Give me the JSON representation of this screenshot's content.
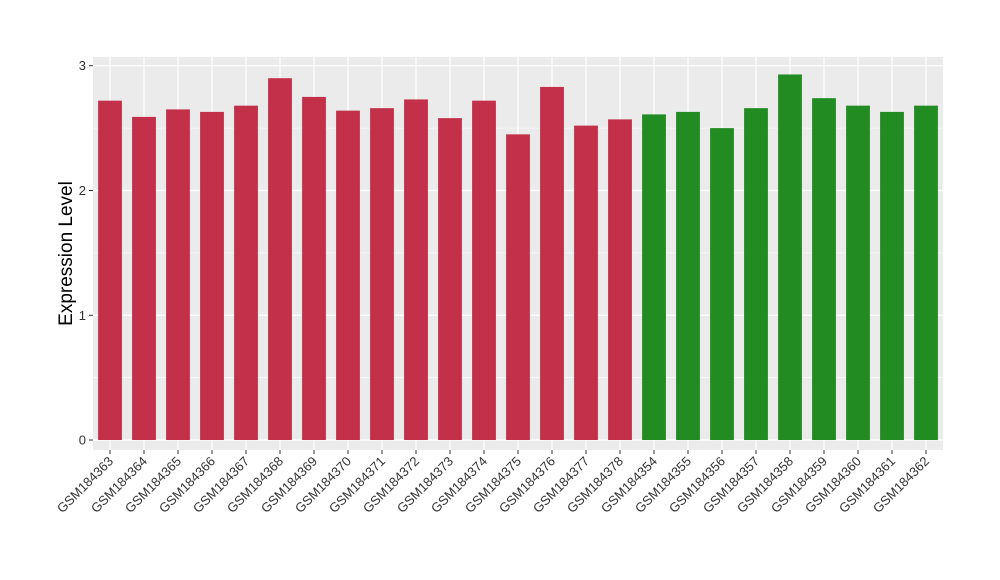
{
  "chart_data": {
    "type": "bar",
    "title": "",
    "xlabel": "",
    "ylabel": "Expression Level",
    "ylim": [
      -0.08,
      3.07
    ],
    "yticks": [
      0,
      1,
      2,
      3
    ],
    "ytick_labels": [
      "0",
      "1",
      "2",
      "3"
    ],
    "grid": true,
    "panel_background": "#ebebeb",
    "categories": [
      "GSM184363",
      "GSM184364",
      "GSM184365",
      "GSM184366",
      "GSM184367",
      "GSM184368",
      "GSM184369",
      "GSM184370",
      "GSM184371",
      "GSM184372",
      "GSM184373",
      "GSM184374",
      "GSM184375",
      "GSM184376",
      "GSM184377",
      "GSM184378",
      "GSM184354",
      "GSM184355",
      "GSM184356",
      "GSM184357",
      "GSM184358",
      "GSM184359",
      "GSM184360",
      "GSM184361",
      "GSM184362"
    ],
    "values": [
      2.72,
      2.59,
      2.65,
      2.63,
      2.68,
      2.9,
      2.75,
      2.64,
      2.66,
      2.73,
      2.58,
      2.72,
      2.45,
      2.83,
      2.52,
      2.57,
      2.61,
      2.63,
      2.5,
      2.66,
      2.93,
      2.74,
      2.68,
      2.63,
      2.68
    ],
    "colors": [
      "#c3304a",
      "#c3304a",
      "#c3304a",
      "#c3304a",
      "#c3304a",
      "#c3304a",
      "#c3304a",
      "#c3304a",
      "#c3304a",
      "#c3304a",
      "#c3304a",
      "#c3304a",
      "#c3304a",
      "#c3304a",
      "#c3304a",
      "#c3304a",
      "#228b22",
      "#228b22",
      "#228b22",
      "#228b22",
      "#228b22",
      "#228b22",
      "#228b22",
      "#228b22",
      "#228b22"
    ]
  }
}
